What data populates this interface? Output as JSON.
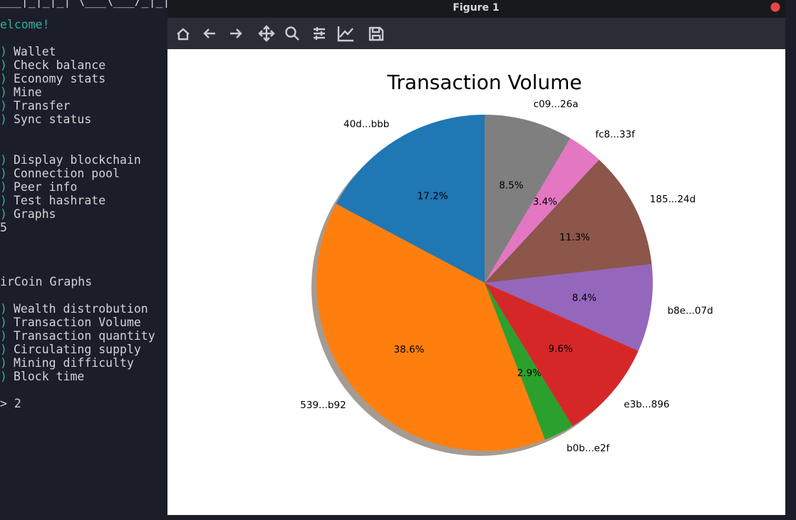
{
  "terminal": {
    "blocks": [
      [
        {
          "text": "___|_|_|_|  \\___\\___/_|_|"
        }
      ],
      [
        {
          "text": "elcome!",
          "accent": true
        }
      ],
      [
        {
          "marker": ")",
          "text": "Wallet"
        },
        {
          "marker": ")",
          "text": "Check balance"
        },
        {
          "marker": ")",
          "text": "Economy stats"
        },
        {
          "marker": ")",
          "text": "Mine"
        },
        {
          "marker": ")",
          "text": "Transfer"
        },
        {
          "marker": ")",
          "text": "Sync status"
        }
      ],
      [
        {
          "marker": ")",
          "text": "Display blockchain"
        },
        {
          "marker": ")",
          "text": "Connection pool"
        },
        {
          "marker": ")",
          "text": "Peer info"
        },
        {
          "marker": ")",
          "text": "Test hashrate"
        },
        {
          "marker": ")",
          "text": "Graphs"
        },
        {
          "text": "5"
        }
      ],
      [
        {
          "text": "irCoin Graphs"
        }
      ],
      [
        {
          "marker": ")",
          "text": "Wealth distrobution"
        },
        {
          "marker": ")",
          "text": "Transaction Volume"
        },
        {
          "marker": ")",
          "text": "Transaction quantity"
        },
        {
          "marker": ")",
          "text": "Circulating supply"
        },
        {
          "marker": ")",
          "text": "Mining difficulty"
        },
        {
          "marker": ")",
          "text": "Block time"
        }
      ],
      [
        {
          "text": "> 2"
        }
      ]
    ]
  },
  "window": {
    "title": "Figure 1"
  },
  "chart_data": {
    "type": "pie",
    "title": "Transaction Volume",
    "categories": [
      "40d...bbb",
      "539...b92",
      "b0b...e2f",
      "e3b...896",
      "b8e...07d",
      "185...24d",
      "fc8...33f",
      "c09...26a"
    ],
    "values": [
      17.2,
      38.6,
      2.9,
      9.6,
      8.4,
      11.3,
      3.4,
      8.5
    ],
    "value_labels": [
      "17.2%",
      "38.6%",
      "2.9%",
      "9.6%",
      "8.4%",
      "11.3%",
      "3.4%",
      "8.5%"
    ],
    "colors": [
      "#1f77b4",
      "#ff7f0e",
      "#2ca02c",
      "#d62728",
      "#9467bd",
      "#8c564b",
      "#e377c2",
      "#7f7f7f"
    ],
    "start_angle": 90,
    "shadow": true
  }
}
